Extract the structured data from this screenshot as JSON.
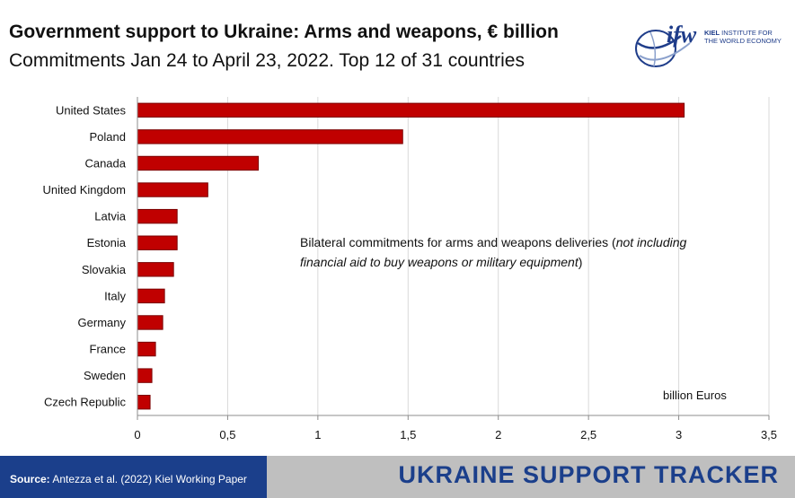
{
  "header": {
    "title": "Government support to Ukraine: Arms and weapons, € billion",
    "subtitle": "Commitments Jan 24 to April 23, 2022. Top 12 of 31 countries"
  },
  "logo": {
    "mark": "ifw",
    "line1_bold": "KIEL",
    "line1_rest": " INSTITUTE FOR",
    "line2": "THE WORLD ECONOMY"
  },
  "annotation": {
    "text_before": "Bilateral commitments for arms and weapons deliveries (",
    "text_italic": "not including financial aid to buy weapons or military equipment",
    "text_after": ")"
  },
  "footer": {
    "source_label": "Source:",
    "source_text": " Antezza et al. (2022) Kiel Working Paper",
    "brand": "UKRAINE SUPPORT TRACKER"
  },
  "colors": {
    "bar_fill": "#c00000",
    "bar_stroke": "#7a0000",
    "footer_blue": "#1b3f8b",
    "footer_gray": "#bfbfbf",
    "grid": "#d9d9d9"
  },
  "chart_data": {
    "type": "bar",
    "orientation": "horizontal",
    "title": "Government support to Ukraine: Arms and weapons, € billion",
    "subtitle": "Commitments Jan 24 to April 23, 2022. Top 12 of 31 countries",
    "categories": [
      "United States",
      "Poland",
      "Canada",
      "United Kingdom",
      "Latvia",
      "Estonia",
      "Slovakia",
      "Italy",
      "Germany",
      "France",
      "Sweden",
      "Czech Republic"
    ],
    "values": [
      3.03,
      1.47,
      0.67,
      0.39,
      0.22,
      0.22,
      0.2,
      0.15,
      0.14,
      0.1,
      0.08,
      0.07
    ],
    "xlim": [
      0,
      3.5
    ],
    "xticks": [
      "0",
      "0,5",
      "1",
      "1,5",
      "2",
      "2,5",
      "3",
      "3,5"
    ],
    "xtick_values": [
      0,
      0.5,
      1,
      1.5,
      2,
      2.5,
      3,
      3.5
    ],
    "unit_label": "billion Euros",
    "grid": true
  }
}
